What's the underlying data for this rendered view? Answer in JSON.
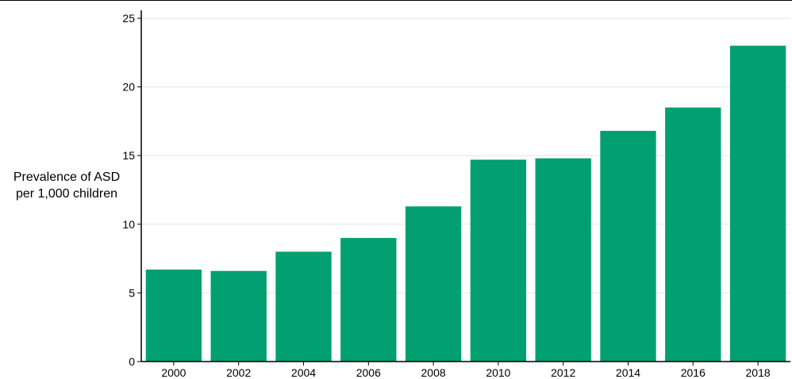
{
  "chart_data": {
    "type": "bar",
    "title": "",
    "xlabel": "",
    "ylabel_lines": [
      "Prevalence of ASD",
      "per 1,000 children"
    ],
    "categories": [
      "2000",
      "2002",
      "2004",
      "2006",
      "2008",
      "2010",
      "2012",
      "2014",
      "2016",
      "2018"
    ],
    "values": [
      6.7,
      6.6,
      8.0,
      9.0,
      11.3,
      14.7,
      14.8,
      16.8,
      18.5,
      23.0
    ],
    "ylim": [
      0,
      25
    ],
    "yticks": [
      0,
      5,
      10,
      15,
      20,
      25
    ],
    "grid": true,
    "bar_color": "#02a071",
    "grid_color": "#e6e6e6"
  }
}
